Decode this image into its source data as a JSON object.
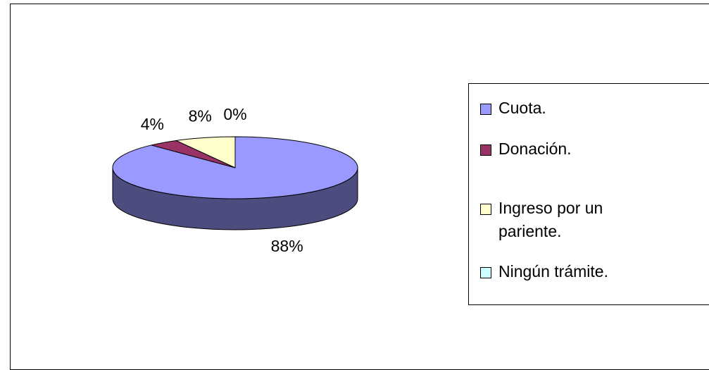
{
  "chart_data": {
    "type": "pie",
    "categories": [
      "Cuota.",
      "Donación.",
      "Ingreso por un pariente.",
      "Ningún trámite."
    ],
    "values": [
      88,
      4,
      8,
      0
    ],
    "value_labels": [
      "88%",
      "4%",
      "8%",
      "0%"
    ],
    "colors": [
      "#9999ff",
      "#993366",
      "#ffffcc",
      "#ccffff"
    ],
    "legend": "right"
  }
}
